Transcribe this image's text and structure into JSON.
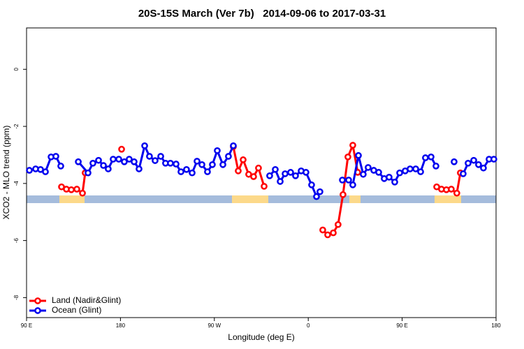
{
  "chart_data": {
    "type": "line",
    "title": "20S-15S March (Ver 7b)   2014-09-06 to 2017-03-31",
    "xlabel": "Longitude (deg E)",
    "ylabel": "XCO2 - MLO trend (ppm)",
    "xlim": [
      90,
      540
    ],
    "ylim": [
      -8.7,
      1.45
    ],
    "xticks": [
      {
        "value": 90,
        "label": "90 E"
      },
      180,
      {
        "value": 270,
        "label": "90 W"
      },
      {
        "value": 360,
        "label": "0"
      },
      {
        "value": 450,
        "label": "90 E"
      },
      {
        "value": 540,
        "label": "180"
      }
    ],
    "yticks": [
      0,
      -2,
      -4,
      -6,
      -8
    ],
    "legend": "bottomleft",
    "series": [
      {
        "name": "Land (Nadir&Glint)",
        "color": "#ff0000",
        "x": [
          123.5,
          128.2,
          132.9,
          138.2,
          143.6,
          146.2,
          160,
          181.1,
          250,
          288.2,
          292.9,
          297.6,
          302.9,
          307.6,
          312.3,
          317.7,
          340,
          373.9,
          378.6,
          384.0,
          388.6,
          393.3,
          398.0,
          402.7,
          407.4,
          450,
          483.1,
          487.7,
          492.4,
          497.1,
          502.4,
          505.8
        ],
        "values": [
          -4.12,
          -4.2,
          -4.22,
          -4.2,
          -4.34,
          -3.63,
          null,
          -2.8,
          null,
          -2.71,
          -3.56,
          -3.17,
          -3.68,
          -3.76,
          -3.46,
          -4.1,
          null,
          -5.63,
          -5.8,
          -5.73,
          -5.44,
          -4.39,
          -3.07,
          -2.66,
          -3.61,
          null,
          -4.12,
          -4.2,
          -4.22,
          -4.2,
          -4.34,
          -3.63
        ]
      },
      {
        "name": "Ocean (Glint)",
        "color": "#0000ee",
        "x": [
          92.7,
          98.7,
          103.4,
          108.1,
          113.5,
          118.1,
          122.8,
          126,
          139.6,
          148.9,
          153.6,
          159.0,
          163.7,
          168.3,
          173.0,
          178.4,
          183.7,
          188.4,
          193.1,
          197.8,
          203.2,
          207.8,
          213.2,
          218.6,
          223.2,
          227.9,
          233.3,
          238.0,
          243.3,
          248.7,
          253.4,
          258.1,
          263.4,
          268.1,
          272.8,
          278.2,
          283.5,
          288.2,
          320,
          323.0,
          328.4,
          333.1,
          337.8,
          343.1,
          347.8,
          353.2,
          357.8,
          363.2,
          367.9,
          371.2,
          378,
          392.7,
          398.7,
          402.7,
          408.1,
          412.7,
          417.4,
          422.8,
          427.5,
          432.8,
          437.5,
          442.9,
          447.6,
          452.9,
          457.6,
          463.0,
          467.7,
          472.3,
          477.7,
          482.4,
          490,
          499.8,
          505,
          508.5,
          513.2,
          518.6,
          523.2,
          527.9,
          533.3,
          537.9
        ],
        "values": [
          -3.54,
          -3.49,
          -3.51,
          -3.59,
          -3.07,
          -3.05,
          -3.39,
          null,
          -3.24,
          -3.63,
          -3.29,
          -3.19,
          -3.37,
          -3.49,
          -3.15,
          -3.15,
          -3.24,
          -3.15,
          -3.24,
          -3.49,
          -2.68,
          -3.05,
          -3.2,
          -3.05,
          -3.29,
          -3.29,
          -3.32,
          -3.59,
          -3.51,
          -3.63,
          -3.22,
          -3.34,
          -3.59,
          -3.34,
          -2.85,
          -3.34,
          -3.05,
          -2.68,
          null,
          -3.73,
          -3.51,
          -3.93,
          -3.66,
          -3.61,
          -3.73,
          -3.56,
          -3.61,
          -4.05,
          -4.46,
          -4.29,
          null,
          -3.88,
          -3.88,
          -4.05,
          -3.02,
          -3.68,
          -3.44,
          -3.54,
          -3.61,
          -3.83,
          -3.78,
          -3.95,
          -3.63,
          -3.56,
          -3.49,
          -3.49,
          -3.59,
          -3.1,
          -3.07,
          -3.39,
          null,
          -3.24,
          null,
          -3.66,
          -3.29,
          -3.19,
          -3.34,
          -3.46,
          -3.15,
          -3.15
        ]
      }
    ]
  }
}
